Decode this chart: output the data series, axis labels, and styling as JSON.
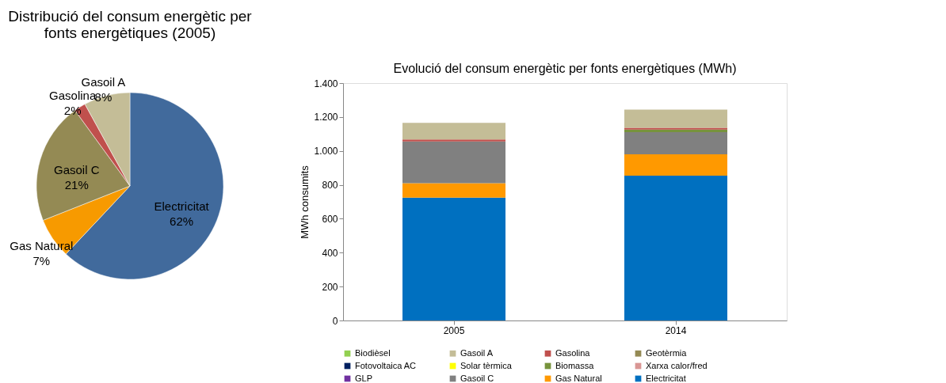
{
  "chart_data": [
    {
      "type": "pie",
      "title": "Distribució del consum energètic per fonts energètiques (2005)",
      "categories": [
        "Electricitat",
        "Gas Natural",
        "Gasoil C",
        "Gasolina",
        "Gasoil A"
      ],
      "values": [
        62,
        7,
        21,
        2,
        8
      ],
      "value_labels": [
        "62%",
        "7%",
        "21%",
        "2%",
        "8%"
      ],
      "colors": [
        "#416a9c",
        "#f79a00",
        "#948a54",
        "#c0504d",
        "#c4bd97"
      ],
      "legend": false
    },
    {
      "type": "bar",
      "stacked": true,
      "title": "Evolució del consum energètic per fonts energètiques (MWh)",
      "ylabel": "MWh consumits",
      "categories": [
        "2005",
        "2014"
      ],
      "ylim": [
        0,
        1400
      ],
      "yticks": [
        0,
        {
          "value": 200,
          "label": "200"
        },
        {
          "value": 400,
          "label": "400"
        },
        {
          "value": 600,
          "label": "600"
        },
        {
          "value": 800,
          "label": "800"
        },
        {
          "value": 1000,
          "label": "1.000"
        },
        {
          "value": 1200,
          "label": "1.200"
        },
        {
          "value": 1400,
          "label": "1.400"
        }
      ],
      "legend": "bottom",
      "grid": false,
      "series": [
        {
          "name": "Electricitat",
          "color": "#0070c0",
          "values": [
            724,
            854
          ]
        },
        {
          "name": "Gas Natural",
          "color": "#ff9900",
          "values": [
            86,
            126
          ]
        },
        {
          "name": "Gasoil C",
          "color": "#808080",
          "values": [
            246,
            131
          ]
        },
        {
          "name": "GLP",
          "color": "#7030a0",
          "values": [
            0,
            0
          ]
        },
        {
          "name": "Xarxa calor/fred",
          "color": "#d99694",
          "values": [
            0,
            0
          ]
        },
        {
          "name": "Biomassa",
          "color": "#77933c",
          "values": [
            0,
            15
          ]
        },
        {
          "name": "Solar tèrmica",
          "color": "#ffff00",
          "values": [
            0,
            0
          ]
        },
        {
          "name": "Fotovoltaica AC",
          "color": "#002060",
          "values": [
            0,
            0
          ]
        },
        {
          "name": "Geotèrmia",
          "color": "#948a54",
          "values": [
            0,
            0
          ]
        },
        {
          "name": "Gasolina",
          "color": "#c0504d",
          "values": [
            12,
            10
          ]
        },
        {
          "name": "Gasoil A",
          "color": "#c4bd97",
          "values": [
            98,
            108
          ]
        },
        {
          "name": "Biodièsel",
          "color": "#92d050",
          "values": [
            0,
            0
          ]
        }
      ]
    }
  ]
}
